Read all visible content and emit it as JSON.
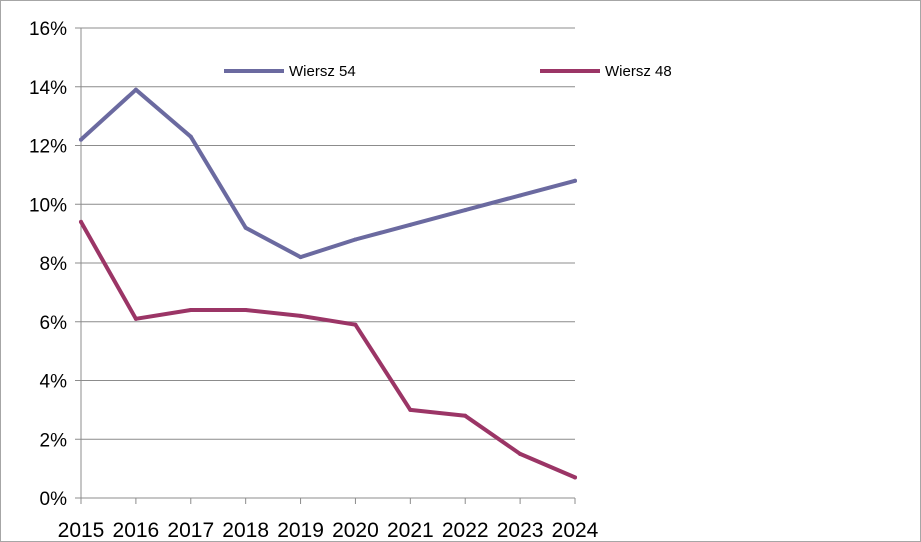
{
  "chart_data": {
    "type": "line",
    "title": "",
    "xlabel": "",
    "ylabel": "",
    "x": [
      "2015",
      "2016",
      "2017",
      "2018",
      "2019",
      "2020",
      "2021",
      "2022",
      "2023",
      "2024"
    ],
    "ylim": [
      0,
      16
    ],
    "y_ticks": [
      0,
      2,
      4,
      6,
      8,
      10,
      12,
      14,
      16
    ],
    "y_tick_labels": [
      "0%",
      "2%",
      "4%",
      "6%",
      "8%",
      "10%",
      "12%",
      "14%",
      "16%"
    ],
    "grid": true,
    "legend_position": "top",
    "series": [
      {
        "name": "Wiersz 54",
        "color": "#6b6aa0",
        "values": [
          12.2,
          13.9,
          12.3,
          9.2,
          8.2,
          8.8,
          9.3,
          9.8,
          10.3,
          10.8
        ]
      },
      {
        "name": "Wiersz 48",
        "color": "#9b3566",
        "values": [
          9.4,
          6.1,
          6.4,
          6.4,
          6.2,
          5.9,
          3.0,
          2.8,
          1.5,
          0.7
        ]
      }
    ]
  }
}
